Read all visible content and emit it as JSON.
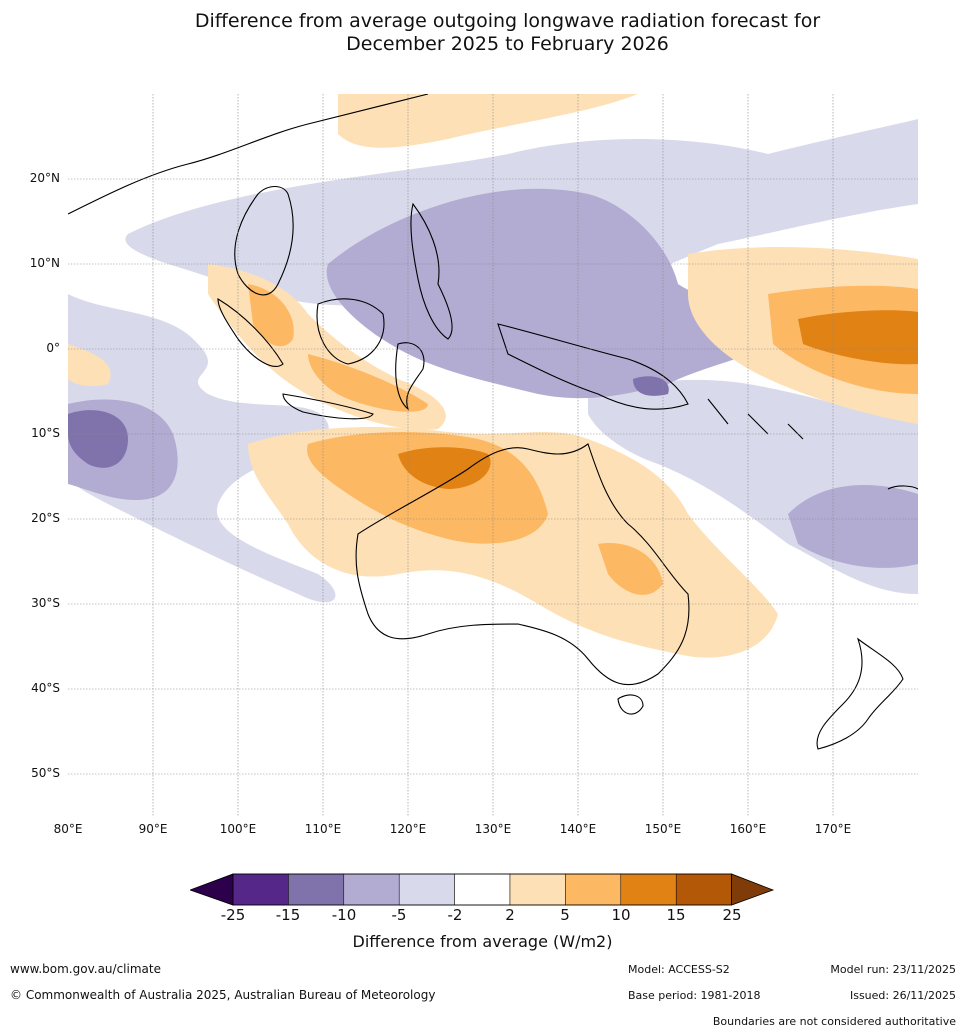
{
  "title_line1": "Difference from average outgoing longwave radiation forecast for",
  "title_line2": "December 2025 to February 2026",
  "map": {
    "lat_labels": [
      "20°N",
      "10°N",
      "0°",
      "10°S",
      "20°S",
      "30°S",
      "40°S",
      "50°S"
    ],
    "lon_labels": [
      "80°E",
      "90°E",
      "100°E",
      "110°E",
      "120°E",
      "130°E",
      "140°E",
      "150°E",
      "160°E",
      "170°E"
    ],
    "lon_range": [
      80,
      180
    ],
    "lat_range": [
      -55,
      30
    ]
  },
  "legend": {
    "ticks": [
      "-25",
      "-15",
      "-10",
      "-5",
      "-2",
      "2",
      "5",
      "10",
      "15",
      "25"
    ],
    "label": "Difference from average (W/m2)",
    "colors": [
      "#2d004b",
      "#542788",
      "#8073ac",
      "#b2abd2",
      "#d8daeb",
      "#ffffff",
      "#fee0b6",
      "#fdb863",
      "#e08214",
      "#b35806",
      "#7f3b08"
    ]
  },
  "footer": {
    "url": "www.bom.gov.au/climate",
    "copyright": "© Commonwealth of Australia 2025, Australian Bureau of Meteorology",
    "model": "Model: ACCESS-S2",
    "base_period": "Base period: 1981-2018",
    "model_run": "Model run: 23/11/2025",
    "issued": "Issued: 26/11/2025",
    "disclaimer": "Boundaries are not considered authoritative"
  }
}
